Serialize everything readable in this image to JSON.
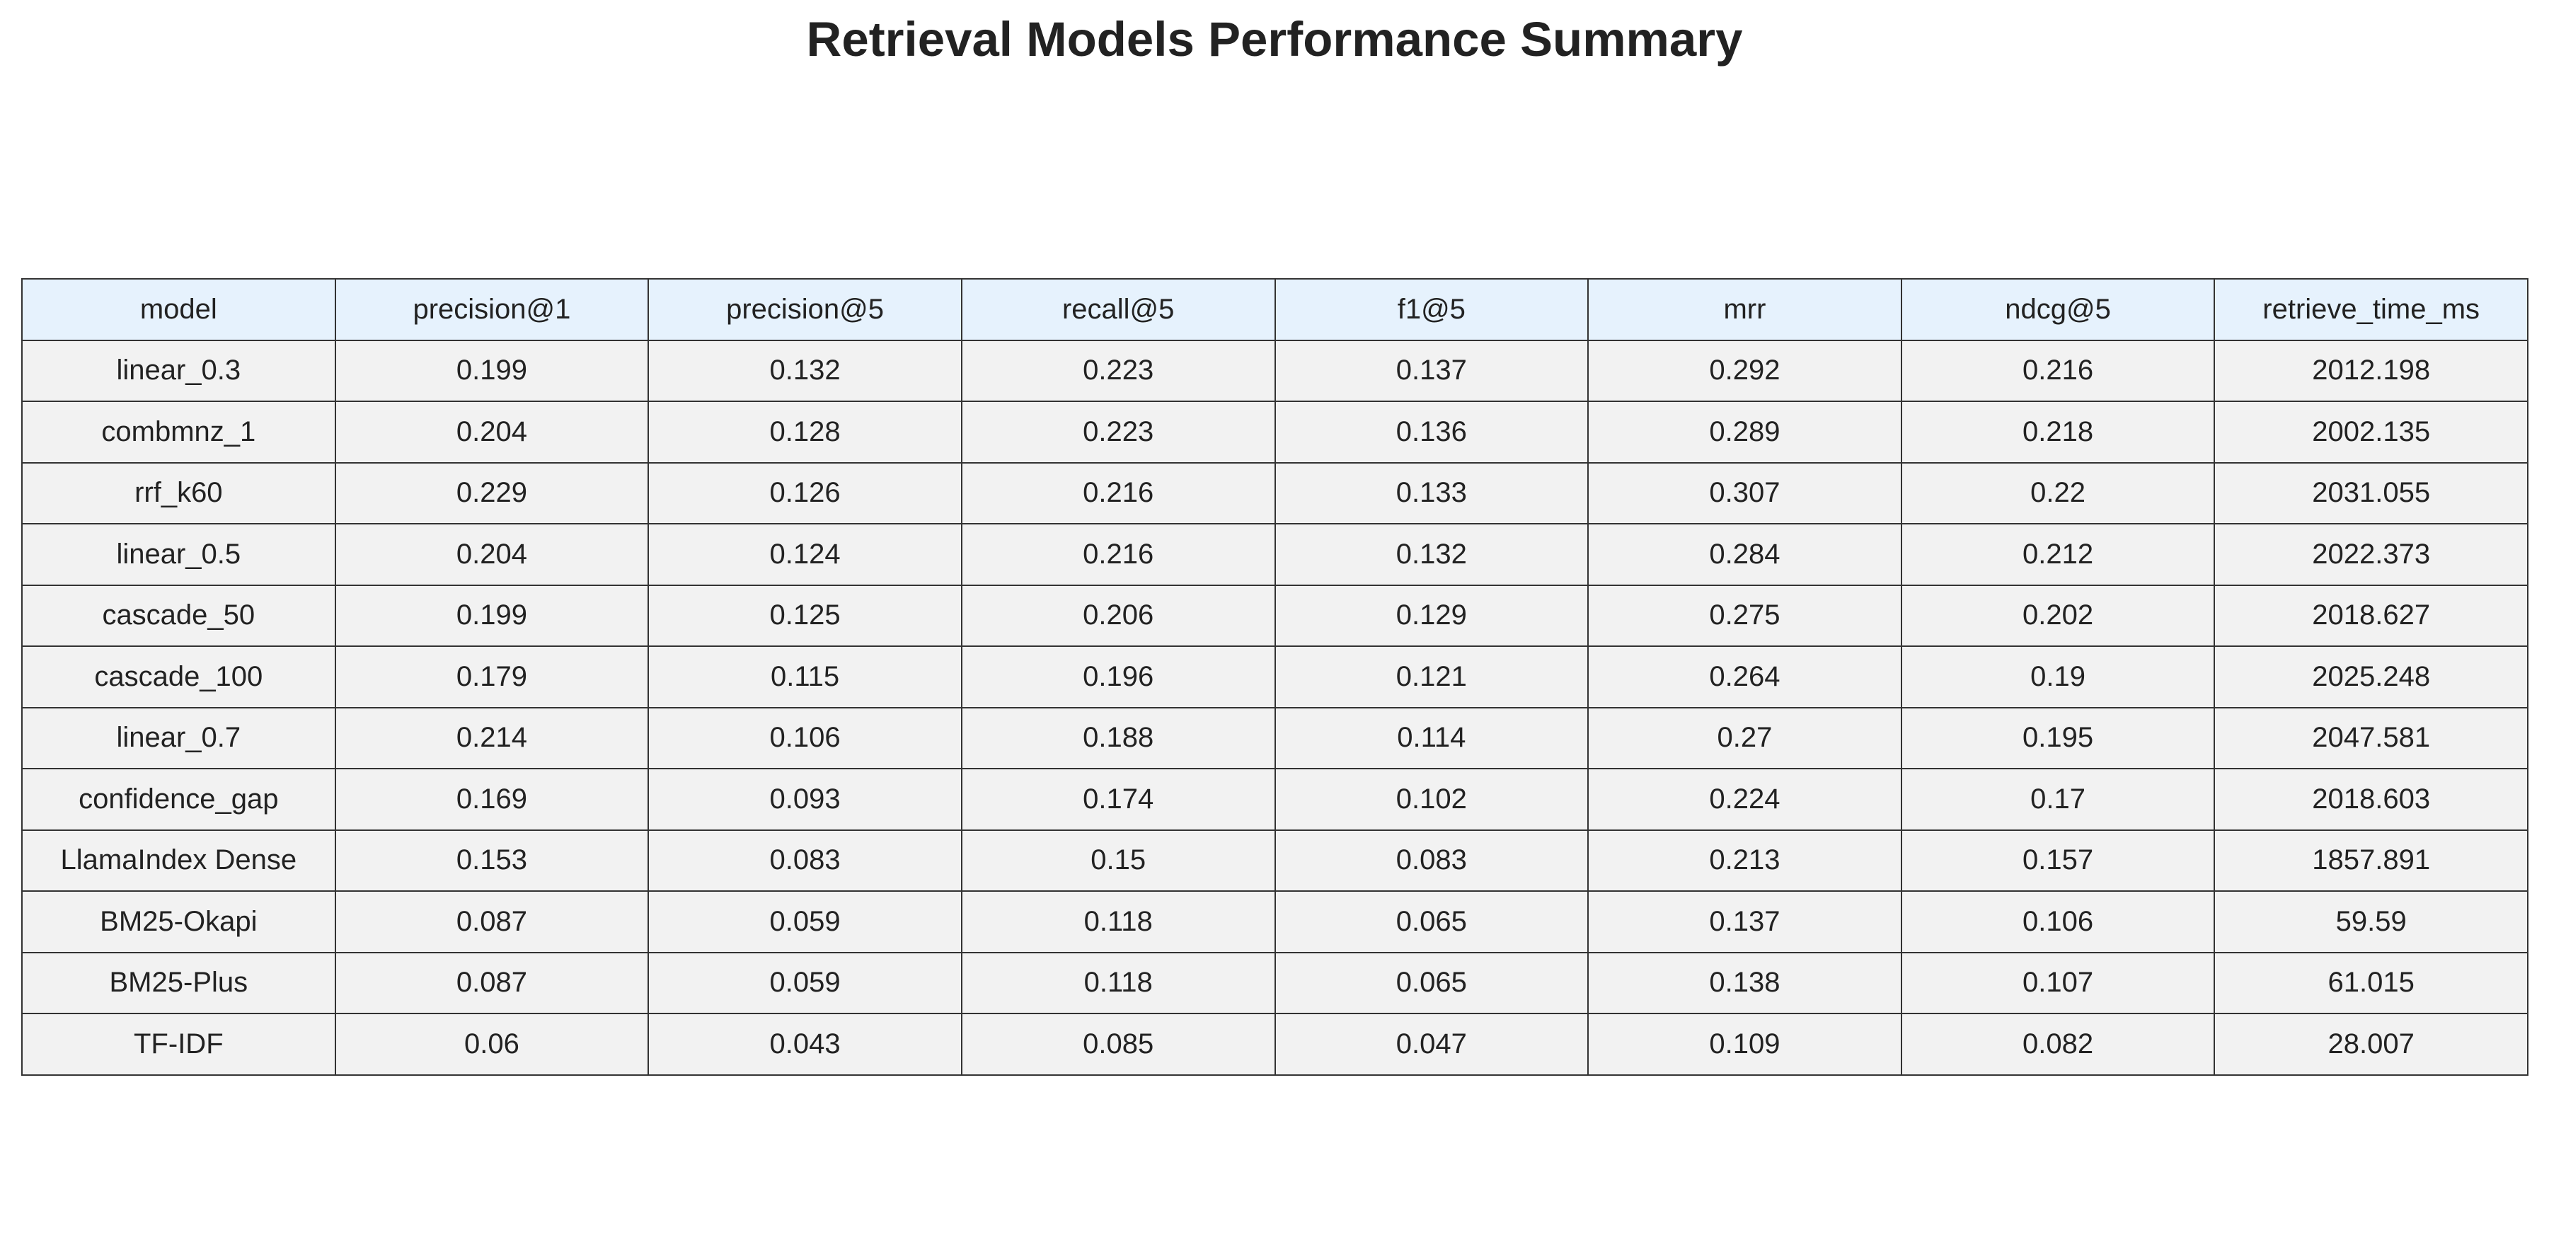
{
  "page": {
    "title": "Retrieval Models Performance Summary"
  },
  "colors": {
    "header_background": "#e6f2fd",
    "cell_background": "#f2f2f2",
    "border": "#333333",
    "text": "#222222"
  },
  "chart_data": {
    "type": "table",
    "title": "Retrieval Models Performance Summary",
    "columns": [
      "model",
      "precision@1",
      "precision@5",
      "recall@5",
      "f1@5",
      "mrr",
      "ndcg@5",
      "retrieve_time_ms"
    ],
    "rows": [
      [
        "linear_0.3",
        "0.199",
        "0.132",
        "0.223",
        "0.137",
        "0.292",
        "0.216",
        "2012.198"
      ],
      [
        "combmnz_1",
        "0.204",
        "0.128",
        "0.223",
        "0.136",
        "0.289",
        "0.218",
        "2002.135"
      ],
      [
        "rrf_k60",
        "0.229",
        "0.126",
        "0.216",
        "0.133",
        "0.307",
        "0.22",
        "2031.055"
      ],
      [
        "linear_0.5",
        "0.204",
        "0.124",
        "0.216",
        "0.132",
        "0.284",
        "0.212",
        "2022.373"
      ],
      [
        "cascade_50",
        "0.199",
        "0.125",
        "0.206",
        "0.129",
        "0.275",
        "0.202",
        "2018.627"
      ],
      [
        "cascade_100",
        "0.179",
        "0.115",
        "0.196",
        "0.121",
        "0.264",
        "0.19",
        "2025.248"
      ],
      [
        "linear_0.7",
        "0.214",
        "0.106",
        "0.188",
        "0.114",
        "0.27",
        "0.195",
        "2047.581"
      ],
      [
        "confidence_gap",
        "0.169",
        "0.093",
        "0.174",
        "0.102",
        "0.224",
        "0.17",
        "2018.603"
      ],
      [
        "LlamaIndex Dense",
        "0.153",
        "0.083",
        "0.15",
        "0.083",
        "0.213",
        "0.157",
        "1857.891"
      ],
      [
        "BM25-Okapi",
        "0.087",
        "0.059",
        "0.118",
        "0.065",
        "0.137",
        "0.106",
        "59.59"
      ],
      [
        "BM25-Plus",
        "0.087",
        "0.059",
        "0.118",
        "0.065",
        "0.138",
        "0.107",
        "61.015"
      ],
      [
        "TF-IDF",
        "0.06",
        "0.043",
        "0.085",
        "0.047",
        "0.109",
        "0.082",
        "28.007"
      ]
    ]
  }
}
